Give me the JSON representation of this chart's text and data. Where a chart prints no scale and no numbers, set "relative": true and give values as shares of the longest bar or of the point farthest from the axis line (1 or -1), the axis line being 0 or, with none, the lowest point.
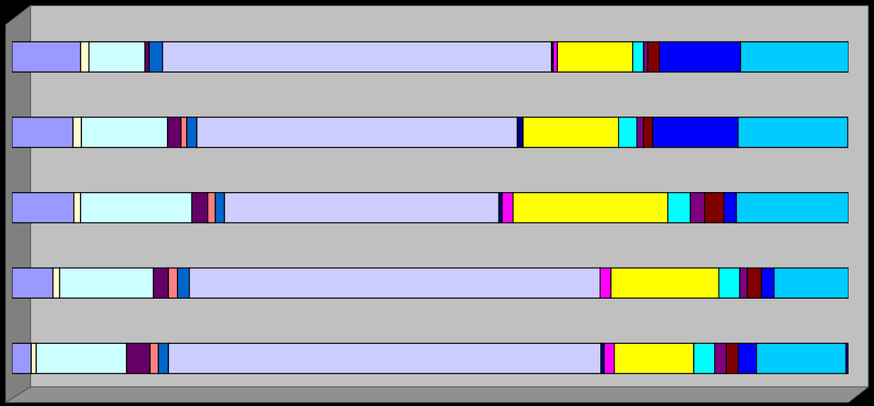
{
  "chart_data": {
    "type": "bar",
    "orientation": "horizontal",
    "stacked": true,
    "relative": true,
    "categories": [
      null,
      null,
      null,
      null,
      null
    ],
    "series": [
      {
        "color": "#9999ff",
        "values": [
          0.082,
          0.073,
          0.074,
          0.049,
          0.023
        ]
      },
      {
        "color": "#ffffcc",
        "values": [
          0.01,
          0.01,
          0.008,
          0.008,
          0.006
        ]
      },
      {
        "color": "#ccffff",
        "values": [
          0.067,
          0.103,
          0.133,
          0.112,
          0.108
        ]
      },
      {
        "color": "#660066",
        "values": [
          0.005,
          0.016,
          0.019,
          0.018,
          0.028
        ]
      },
      {
        "color": "#ff8080",
        "values": [
          null,
          0.007,
          0.009,
          0.011,
          0.01
        ]
      },
      {
        "color": "#0066cc",
        "values": [
          0.016,
          0.012,
          0.011,
          0.014,
          0.012
        ]
      },
      {
        "color": "#ccccff",
        "values": [
          0.465,
          0.383,
          0.328,
          0.491,
          0.517
        ]
      },
      {
        "color": "#000080",
        "values": [
          0.002,
          0.007,
          0.004,
          null,
          0.004
        ]
      },
      {
        "color": "#ff00ff",
        "values": [
          0.005,
          null,
          0.013,
          0.013,
          0.012
        ]
      },
      {
        "color": "#ffff00",
        "values": [
          0.09,
          0.114,
          0.185,
          0.129,
          0.095
        ]
      },
      {
        "color": "#00ffff",
        "values": [
          0.013,
          0.022,
          0.027,
          0.025,
          0.025
        ]
      },
      {
        "color": "#800080",
        "values": [
          0.005,
          0.008,
          0.017,
          0.009,
          0.014
        ]
      },
      {
        "color": "#800000",
        "values": [
          0.014,
          0.011,
          0.023,
          0.017,
          0.014
        ]
      },
      {
        "color": "#0000ff",
        "values": [
          0.097,
          0.102,
          0.015,
          0.015,
          0.022
        ]
      },
      {
        "color": "#00ccff",
        "values": [
          0.129,
          0.131,
          0.134,
          0.089,
          0.107
        ]
      },
      {
        "color": "#000080",
        "values": [
          null,
          null,
          null,
          null,
          0.003
        ]
      }
    ]
  }
}
